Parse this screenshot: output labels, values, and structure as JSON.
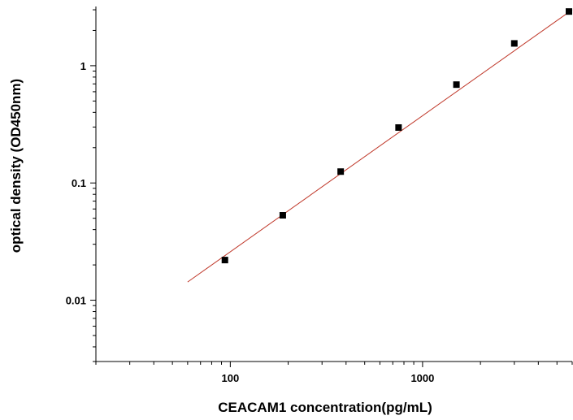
{
  "chart_data": {
    "type": "scatter",
    "title": "",
    "xlabel": "CEACAM1 concentration(pg/mL)",
    "ylabel": "optical density (OD450nm)",
    "xscale": "log",
    "yscale": "log",
    "xlim": [
      20,
      6000
    ],
    "ylim": [
      0.003,
      3.2
    ],
    "x_ticks": [
      100,
      1000
    ],
    "x_tick_labels": [
      "100",
      "1000"
    ],
    "y_ticks": [
      0.01,
      0.1,
      1
    ],
    "y_tick_labels": [
      "0.01",
      "0.1",
      "1"
    ],
    "grid": false,
    "series": [
      {
        "marker": "square",
        "color": "#000000",
        "x": [
          93.75,
          187.5,
          375,
          750,
          1500,
          3000,
          6000
        ],
        "y": [
          0.022,
          0.053,
          0.125,
          0.297,
          0.69,
          1.55,
          2.9
        ]
      }
    ],
    "fit_line": {
      "color": "#c0392b",
      "x": [
        60,
        6000
      ],
      "y": [
        0.0143,
        3.0
      ]
    }
  }
}
